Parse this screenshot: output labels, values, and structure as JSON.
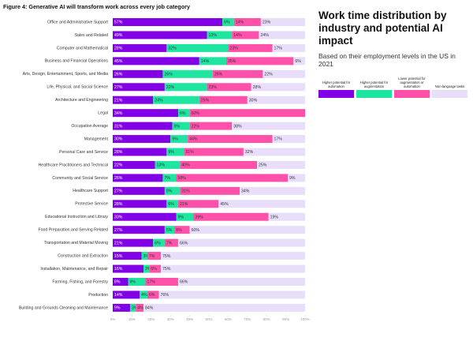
{
  "chart_data": {
    "type": "stacked-bar-horizontal",
    "title": "Figure 4: Generative AI will transform work across every job category",
    "side_title": "Work time distribution by industry and potential AI impact",
    "subtitle": "Based on their employment levels in the US in 2021",
    "categories": [
      "Office and Administrative Support",
      "Sales and Related",
      "Computer and Mathematical",
      "Business and Financial Operations",
      "Arts, Design, Entertainment, Sports, and Media",
      "Life, Physical, and Social Science",
      "Architecture and Engineering",
      "Legal",
      "Occupation Average",
      "Management",
      "Personal Care and Service",
      "Healthcare Practitioners and Technical",
      "Community and Social Service",
      "Healthcare Support",
      "Protective Service",
      "Educational Instruction and Library",
      "Food Preparation and Serving Related",
      "Transportation and Material Moving",
      "Construction and Extraction",
      "Installation, Maintenance, and Repair",
      "Farming, Fishing, and Forestry",
      "Production",
      "Building and Grounds Cleaning and Maintenance"
    ],
    "series": [
      {
        "name": "Higher potential for automation",
        "color": "#8200e6",
        "values": [
          57,
          49,
          28,
          45,
          26,
          27,
          21,
          34,
          31,
          30,
          28,
          22,
          26,
          27,
          28,
          33,
          27,
          21,
          15,
          16,
          8,
          14,
          9
        ],
        "value_labels": [
          "57%",
          "49%",
          "28%",
          "45%",
          "26%",
          "27%",
          "21%",
          "34%",
          "31%",
          "30%",
          "28%",
          "22%",
          "26%",
          "27%",
          "28%",
          "33%",
          "27%",
          "21%",
          "15%",
          "16%",
          "8%",
          "14%",
          "9%"
        ]
      },
      {
        "name": "Higher potential for augmentation",
        "color": "#1ee6a0",
        "values": [
          6,
          13,
          32,
          14,
          26,
          22,
          24,
          6,
          9,
          9,
          9,
          13,
          7,
          8,
          6,
          9,
          5,
          6,
          3,
          3,
          9,
          4,
          3
        ],
        "value_labels": [
          "6%",
          "13%",
          "32%",
          "14%",
          "26%",
          "22%",
          "24%",
          "6%",
          "9%",
          "9%",
          "9%",
          "13%",
          "7%",
          "8%",
          "6%",
          "9%",
          "5%",
          "6%",
          "3%",
          "3%",
          "9%",
          "4%",
          "3%"
        ]
      },
      {
        "name": "Lower potential for augmentation or automation",
        "color": "#ff50aa",
        "values": [
          14,
          14,
          23,
          35,
          26,
          23,
          25,
          60,
          22,
          44,
          31,
          40,
          58,
          31,
          21,
          39,
          8,
          7,
          7,
          6,
          17,
          6,
          4
        ],
        "value_labels": [
          "14%",
          "14%",
          "23%",
          "35%",
          "26%",
          "23%",
          "25%",
          "60%",
          "22%",
          "44%",
          "31%",
          "40%",
          "58%",
          "31%",
          "21%",
          "39%",
          "8%",
          "7%",
          "7%",
          "6%",
          "17%",
          "6%",
          "4%"
        ]
      },
      {
        "name": "Non-language tasks",
        "color": "#e8defa",
        "values": [
          23,
          24,
          17,
          6,
          22,
          28,
          30,
          null,
          38,
          17,
          32,
          25,
          9,
          34,
          45,
          19,
          60,
          66,
          75,
          75,
          66,
          76,
          84
        ],
        "value_labels": [
          "23%",
          "24%",
          "17%",
          "6%",
          "22%",
          "28%",
          "30%",
          null,
          "38%",
          "17%",
          "32%",
          "25%",
          "9%",
          "34%",
          "45%",
          "19%",
          "60%",
          "66%",
          "75%",
          "75%",
          "66%",
          "76%",
          "84%"
        ]
      }
    ],
    "xlim": [
      0,
      100
    ],
    "xticks": [
      {
        "value": 0,
        "label": "0%"
      },
      {
        "value": 10,
        "label": "10%"
      },
      {
        "value": 20,
        "label": "20%"
      },
      {
        "value": 30,
        "label": "30%"
      },
      {
        "value": 40,
        "label": "40%"
      },
      {
        "value": 50,
        "label": "50%"
      },
      {
        "value": 60,
        "label": "60%"
      },
      {
        "value": 70,
        "label": "70%"
      },
      {
        "value": 80,
        "label": "80%"
      },
      {
        "value": 90,
        "label": "90%"
      },
      {
        "value": 100,
        "label": "100%"
      }
    ]
  }
}
